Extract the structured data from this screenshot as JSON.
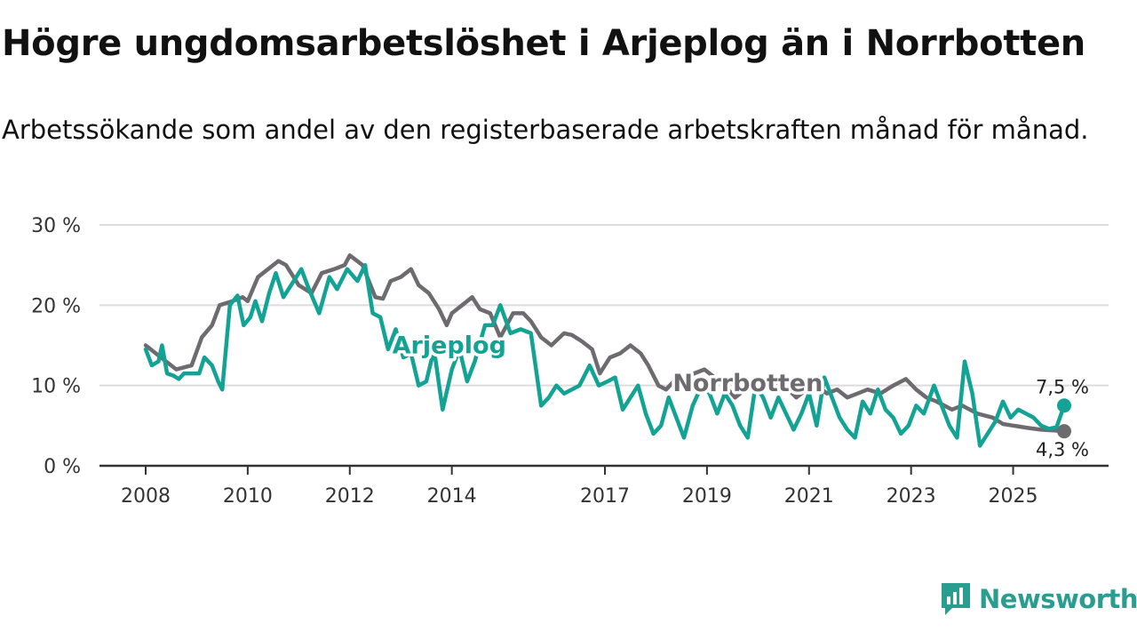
{
  "title": "Högre ungdomsarbetslöshet i Arjeplog än i Norrbotten",
  "subtitle": "Arbetssökande som andel av den registerbaserade arbetskraften månad för månad.",
  "brand": {
    "name": "Newsworthy",
    "logo_icon": "newsworthy-logo-icon"
  },
  "chart_data": {
    "type": "line",
    "x_range": [
      2008,
      2026
    ],
    "ylim": [
      0,
      30
    ],
    "y_ticks": [
      0,
      10,
      20,
      30
    ],
    "y_tick_labels": [
      "0 %",
      "10 %",
      "20 %",
      "30 %"
    ],
    "x_ticks": [
      2008,
      2010,
      2012,
      2014,
      2017,
      2019,
      2021,
      2023,
      2025
    ],
    "x_tick_labels": [
      "2008",
      "2010",
      "2012",
      "2014",
      "2017",
      "2019",
      "2021",
      "2023",
      "2025"
    ],
    "grid": true,
    "series": [
      {
        "name": "Norrbotten",
        "color": "#6e6b70",
        "end_label": "4,3 %",
        "points": [
          [
            2008.0,
            15.0
          ],
          [
            2008.3,
            13.5
          ],
          [
            2008.6,
            12.0
          ],
          [
            2008.9,
            12.5
          ],
          [
            2009.1,
            16.0
          ],
          [
            2009.3,
            17.5
          ],
          [
            2009.45,
            20.0
          ],
          [
            2009.7,
            20.5
          ],
          [
            2009.9,
            21.0
          ],
          [
            2010.0,
            20.5
          ],
          [
            2010.2,
            23.5
          ],
          [
            2010.4,
            24.5
          ],
          [
            2010.6,
            25.5
          ],
          [
            2010.75,
            25.0
          ],
          [
            2011.0,
            22.5
          ],
          [
            2011.25,
            21.5
          ],
          [
            2011.45,
            24.0
          ],
          [
            2011.7,
            24.5
          ],
          [
            2011.9,
            25.0
          ],
          [
            2012.0,
            26.2
          ],
          [
            2012.25,
            25.0
          ],
          [
            2012.5,
            21.0
          ],
          [
            2012.65,
            20.8
          ],
          [
            2012.8,
            23.0
          ],
          [
            2013.0,
            23.5
          ],
          [
            2013.2,
            24.5
          ],
          [
            2013.35,
            22.5
          ],
          [
            2013.55,
            21.5
          ],
          [
            2013.75,
            19.5
          ],
          [
            2013.9,
            17.5
          ],
          [
            2014.0,
            19.0
          ],
          [
            2014.2,
            20.0
          ],
          [
            2014.4,
            21.0
          ],
          [
            2014.55,
            19.5
          ],
          [
            2014.75,
            19.0
          ],
          [
            2014.95,
            16.0
          ],
          [
            2015.2,
            19.0
          ],
          [
            2015.4,
            19.0
          ],
          [
            2015.55,
            18.0
          ],
          [
            2015.75,
            16.0
          ],
          [
            2015.95,
            15.0
          ],
          [
            2016.2,
            16.5
          ],
          [
            2016.35,
            16.3
          ],
          [
            2016.55,
            15.5
          ],
          [
            2016.75,
            14.5
          ],
          [
            2016.9,
            11.5
          ],
          [
            2017.1,
            13.5
          ],
          [
            2017.3,
            14.0
          ],
          [
            2017.5,
            15.0
          ],
          [
            2017.7,
            14.0
          ],
          [
            2017.85,
            12.5
          ],
          [
            2018.05,
            10.0
          ],
          [
            2018.2,
            9.5
          ],
          [
            2018.35,
            10.5
          ],
          [
            2018.55,
            11.0
          ],
          [
            2018.75,
            11.5
          ],
          [
            2018.95,
            12.0
          ],
          [
            2019.15,
            11.0
          ],
          [
            2019.35,
            10.0
          ],
          [
            2019.55,
            8.5
          ],
          [
            2019.75,
            9.5
          ],
          [
            2019.95,
            10.5
          ],
          [
            2020.15,
            10.8
          ],
          [
            2020.35,
            10.3
          ],
          [
            2020.55,
            9.8
          ],
          [
            2020.75,
            8.5
          ],
          [
            2020.95,
            9.5
          ],
          [
            2021.15,
            10.0
          ],
          [
            2021.35,
            9.0
          ],
          [
            2021.55,
            9.5
          ],
          [
            2021.75,
            8.5
          ],
          [
            2021.95,
            9.0
          ],
          [
            2022.15,
            9.5
          ],
          [
            2022.4,
            9.0
          ],
          [
            2022.65,
            10.0
          ],
          [
            2022.9,
            10.8
          ],
          [
            2023.1,
            9.5
          ],
          [
            2023.3,
            8.5
          ],
          [
            2023.5,
            8.0
          ],
          [
            2023.8,
            7.0
          ],
          [
            2024.0,
            7.5
          ],
          [
            2024.3,
            6.5
          ],
          [
            2024.6,
            6.0
          ],
          [
            2024.8,
            5.2
          ],
          [
            2025.0,
            5.0
          ],
          [
            2025.3,
            4.7
          ],
          [
            2025.55,
            4.5
          ],
          [
            2025.8,
            4.4
          ],
          [
            2026.0,
            4.3
          ]
        ]
      },
      {
        "name": "Arjeplog",
        "color": "#12a394",
        "end_label": "7,5 %",
        "points": [
          [
            2008.0,
            14.5
          ],
          [
            2008.12,
            12.5
          ],
          [
            2008.25,
            13.0
          ],
          [
            2008.32,
            15.0
          ],
          [
            2008.42,
            11.5
          ],
          [
            2008.55,
            11.2
          ],
          [
            2008.65,
            10.8
          ],
          [
            2008.75,
            11.5
          ],
          [
            2008.9,
            11.5
          ],
          [
            2009.05,
            11.5
          ],
          [
            2009.15,
            13.5
          ],
          [
            2009.3,
            12.5
          ],
          [
            2009.42,
            10.5
          ],
          [
            2009.5,
            9.5
          ],
          [
            2009.65,
            20.0
          ],
          [
            2009.8,
            21.2
          ],
          [
            2009.92,
            17.5
          ],
          [
            2010.05,
            18.5
          ],
          [
            2010.15,
            20.5
          ],
          [
            2010.28,
            18.0
          ],
          [
            2010.42,
            21.5
          ],
          [
            2010.55,
            24.0
          ],
          [
            2010.7,
            21.0
          ],
          [
            2010.85,
            22.5
          ],
          [
            2011.05,
            24.5
          ],
          [
            2011.2,
            22.0
          ],
          [
            2011.4,
            19.0
          ],
          [
            2011.6,
            23.5
          ],
          [
            2011.75,
            22.0
          ],
          [
            2011.95,
            24.5
          ],
          [
            2012.15,
            23.0
          ],
          [
            2012.3,
            25.0
          ],
          [
            2012.45,
            19.0
          ],
          [
            2012.6,
            18.5
          ],
          [
            2012.75,
            14.5
          ],
          [
            2012.9,
            17.0
          ],
          [
            2013.05,
            13.5
          ],
          [
            2013.2,
            14.0
          ],
          [
            2013.35,
            10.0
          ],
          [
            2013.5,
            10.5
          ],
          [
            2013.65,
            14.5
          ],
          [
            2013.82,
            7.0
          ],
          [
            2014.0,
            12.0
          ],
          [
            2014.15,
            14.5
          ],
          [
            2014.3,
            10.5
          ],
          [
            2014.45,
            13.0
          ],
          [
            2014.65,
            17.5
          ],
          [
            2014.8,
            17.5
          ],
          [
            2014.95,
            20.0
          ],
          [
            2015.15,
            16.5
          ],
          [
            2015.35,
            17.0
          ],
          [
            2015.55,
            16.5
          ],
          [
            2015.75,
            7.5
          ],
          [
            2015.9,
            8.5
          ],
          [
            2016.05,
            10.0
          ],
          [
            2016.2,
            9.0
          ],
          [
            2016.35,
            9.5
          ],
          [
            2016.5,
            10.0
          ],
          [
            2016.7,
            12.5
          ],
          [
            2016.88,
            10.0
          ],
          [
            2017.05,
            10.5
          ],
          [
            2017.2,
            11.0
          ],
          [
            2017.35,
            7.0
          ],
          [
            2017.5,
            8.5
          ],
          [
            2017.65,
            10.0
          ],
          [
            2017.8,
            6.5
          ],
          [
            2017.95,
            4.0
          ],
          [
            2018.1,
            5.0
          ],
          [
            2018.25,
            8.5
          ],
          [
            2018.4,
            6.0
          ],
          [
            2018.55,
            3.5
          ],
          [
            2018.72,
            7.5
          ],
          [
            2018.9,
            10.0
          ],
          [
            2019.05,
            9.0
          ],
          [
            2019.2,
            6.5
          ],
          [
            2019.35,
            9.0
          ],
          [
            2019.5,
            7.5
          ],
          [
            2019.65,
            5.0
          ],
          [
            2019.8,
            3.5
          ],
          [
            2019.95,
            10.0
          ],
          [
            2020.1,
            8.5
          ],
          [
            2020.25,
            6.0
          ],
          [
            2020.4,
            8.5
          ],
          [
            2020.55,
            6.5
          ],
          [
            2020.7,
            4.5
          ],
          [
            2020.85,
            6.5
          ],
          [
            2021.0,
            9.0
          ],
          [
            2021.15,
            5.0
          ],
          [
            2021.3,
            11.0
          ],
          [
            2021.45,
            8.5
          ],
          [
            2021.6,
            6.0
          ],
          [
            2021.75,
            4.5
          ],
          [
            2021.9,
            3.5
          ],
          [
            2022.05,
            8.0
          ],
          [
            2022.2,
            6.5
          ],
          [
            2022.35,
            9.5
          ],
          [
            2022.5,
            7.0
          ],
          [
            2022.65,
            6.0
          ],
          [
            2022.8,
            4.0
          ],
          [
            2022.95,
            5.0
          ],
          [
            2023.1,
            7.5
          ],
          [
            2023.25,
            6.5
          ],
          [
            2023.45,
            10.0
          ],
          [
            2023.6,
            7.5
          ],
          [
            2023.75,
            5.0
          ],
          [
            2023.9,
            3.5
          ],
          [
            2024.05,
            13.0
          ],
          [
            2024.2,
            9.0
          ],
          [
            2024.35,
            2.5
          ],
          [
            2024.5,
            4.0
          ],
          [
            2024.65,
            5.5
          ],
          [
            2024.8,
            8.0
          ],
          [
            2024.95,
            6.0
          ],
          [
            2025.1,
            7.0
          ],
          [
            2025.25,
            6.5
          ],
          [
            2025.4,
            6.0
          ],
          [
            2025.55,
            5.0
          ],
          [
            2025.7,
            4.6
          ],
          [
            2025.85,
            4.8
          ],
          [
            2026.0,
            7.5
          ]
        ]
      }
    ],
    "series_labels": [
      {
        "series": "Arjeplog",
        "text": "Arjeplog",
        "x": 2013.95,
        "y": 14.0
      },
      {
        "series": "Norrbotten",
        "text": "Norrbotten",
        "x": 2019.8,
        "y": 9.3
      }
    ]
  }
}
